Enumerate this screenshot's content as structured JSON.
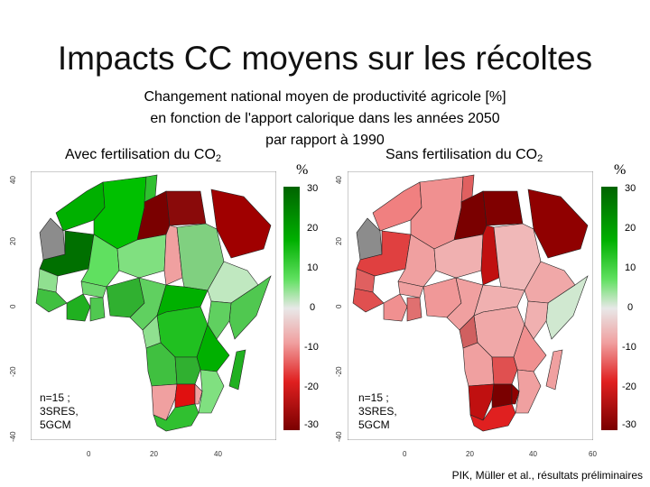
{
  "slide": {
    "title": "Impacts CC moyens sur les récoltes",
    "subtitle_lines": [
      "Changement national moyen de productivité agricole [%]",
      "en fonction de l'apport calorique dans les années 2050",
      "par rapport à 1990"
    ],
    "credit": "PIK, Müller et al., résultats préliminaires"
  },
  "panels": [
    {
      "label": "Avec fertilisation du CO",
      "label_sub": "2",
      "unit": "%",
      "note": "n=15 ;\n3SRES,\n5GCM",
      "x_ticks": [
        "0",
        "20",
        "40"
      ],
      "y_ticks": [
        "40",
        "20",
        "0",
        "-20",
        "-40"
      ]
    },
    {
      "label": "Sans fertilisation du CO",
      "label_sub": "2",
      "unit": "%",
      "note": "n=15 ;\n3SRES,\n5GCM",
      "x_ticks": [
        "0",
        "20",
        "40",
        "60"
      ],
      "y_ticks": [
        "40",
        "20",
        "0",
        "-20",
        "-40"
      ]
    }
  ],
  "colorbar": {
    "ticks": [
      "30",
      "20",
      "10",
      "0",
      "-10",
      "-20",
      "-30"
    ],
    "colors": {
      "pos_high": "#006400",
      "pos_mid": "#00b000",
      "pos_low": "#60e060",
      "neutral": "#e8e8e8",
      "neg_low": "#f0a0a0",
      "neg_mid": "#e02020",
      "neg_high": "#7a0000",
      "no_data": "#8c8c8c"
    }
  }
}
